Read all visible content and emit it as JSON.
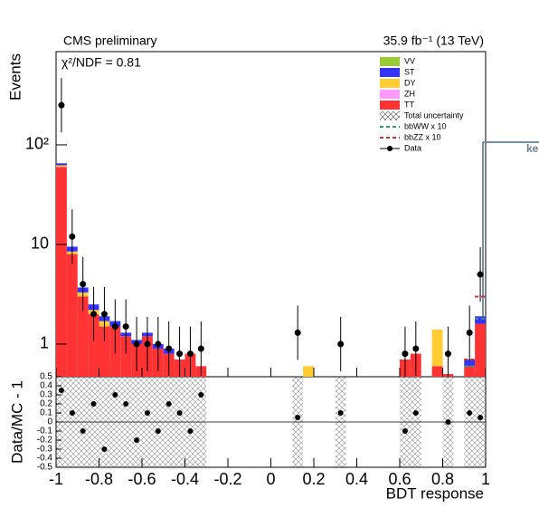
{
  "chart_data": {
    "type": "stacked_histogram",
    "title": "CMS preliminary",
    "subtitle": "35.9 fb⁻¹ (13 TeV)",
    "annotation": "χ²/NDF = 0.81",
    "side_note": "ke",
    "ylabel": "Events",
    "xlabel": "BDT response",
    "log_y": true,
    "xlim": [
      -1,
      1
    ],
    "xticks": [
      -1,
      -0.8,
      -0.6,
      -0.4,
      -0.2,
      0,
      0.2,
      0.4,
      0.6,
      0.8,
      1
    ],
    "ylim": [
      0.47,
      863
    ],
    "yticks": [
      1,
      10,
      {
        "value": 100,
        "label": "10²"
      }
    ],
    "bins": [
      -1,
      -0.95,
      -0.9,
      -0.85,
      -0.8,
      -0.75,
      -0.7,
      -0.65,
      -0.6,
      -0.55,
      -0.5,
      -0.45,
      -0.4,
      -0.35,
      -0.3,
      -0.25,
      -0.2,
      -0.15,
      -0.1,
      -0.05,
      0,
      0.05,
      0.1,
      0.15,
      0.2,
      0.25,
      0.3,
      0.35,
      0.4,
      0.45,
      0.5,
      0.55,
      0.6,
      0.65,
      0.7,
      0.75,
      0.8,
      0.85,
      0.9,
      0.95,
      1
    ],
    "series": [
      {
        "name": "VV",
        "color": "#99cc33",
        "values": [
          0.5,
          0,
          0,
          0,
          0,
          0,
          0,
          0,
          0,
          0,
          0,
          0,
          0,
          0,
          0,
          0,
          0,
          0,
          0,
          0,
          0,
          0,
          0,
          0,
          0,
          0,
          0,
          0,
          0,
          0,
          0,
          0,
          0,
          0,
          0,
          0,
          0,
          0,
          0,
          0
        ]
      },
      {
        "name": "ST",
        "color": "#3333ff",
        "values": [
          3,
          1,
          0.4,
          0.3,
          0.2,
          0.2,
          0.1,
          0.1,
          0.1,
          0.1,
          0.1,
          0,
          0,
          0,
          0,
          0,
          0,
          0,
          0,
          0,
          0,
          0,
          0,
          0,
          0,
          0,
          0,
          0,
          0,
          0,
          0,
          0,
          0,
          0,
          0,
          0,
          0,
          0,
          0.1,
          0.3
        ]
      },
      {
        "name": "DY",
        "color": "#ffcc33",
        "values": [
          2,
          0.5,
          0.3,
          0.2,
          0.2,
          0,
          0,
          0,
          0,
          0,
          0,
          0,
          0,
          0,
          0,
          0,
          0,
          0,
          0,
          0,
          0,
          0,
          0,
          0.6,
          0,
          0,
          0,
          0,
          0,
          0,
          0,
          0,
          0,
          0,
          0,
          0.8,
          0,
          0,
          0,
          0
        ]
      },
      {
        "name": "ZH",
        "color": "#ff99ff",
        "values": [
          0.3,
          0,
          0,
          0,
          0,
          0,
          0,
          0,
          0,
          0,
          0,
          0,
          0,
          0,
          0,
          0,
          0,
          0,
          0,
          0,
          0,
          0,
          0,
          0,
          0,
          0,
          0,
          0,
          0,
          0,
          0,
          0,
          0,
          0,
          0,
          0,
          0,
          0,
          0,
          0
        ]
      },
      {
        "name": "TT",
        "color": "#ff3333",
        "values": [
          60,
          8,
          3,
          2,
          1.5,
          1.5,
          1.2,
          1,
          1.2,
          0.9,
          0.8,
          0.7,
          0.8,
          0.6,
          0,
          0,
          0,
          0,
          0,
          0,
          0,
          0,
          0,
          0,
          0,
          0,
          0,
          0,
          0,
          0,
          0,
          0,
          0.7,
          0.8,
          0,
          0.6,
          0.5,
          0,
          0.6,
          1.6
        ]
      }
    ],
    "uncertainty_name": "Total uncertainty",
    "signals": [
      {
        "name": "bbWW x 10",
        "color": "#339966",
        "values": [
          null,
          null,
          null,
          null,
          null,
          null,
          null,
          null,
          null,
          null,
          null,
          null,
          null,
          null,
          null,
          null,
          null,
          null,
          null,
          null,
          null,
          null,
          null,
          null,
          null,
          null,
          null,
          null,
          null,
          null,
          null,
          null,
          null,
          null,
          null,
          null,
          null,
          null,
          0.6,
          1.8
        ]
      },
      {
        "name": "bbZZ x 10",
        "color": "#cc3333",
        "values": [
          null,
          null,
          null,
          null,
          null,
          null,
          null,
          null,
          null,
          null,
          null,
          null,
          null,
          null,
          null,
          null,
          null,
          null,
          null,
          null,
          null,
          null,
          null,
          null,
          null,
          null,
          null,
          null,
          null,
          null,
          null,
          null,
          null,
          null,
          null,
          null,
          null,
          null,
          0.7,
          3
        ]
      }
    ],
    "data": {
      "name": "Data",
      "values": [
        250,
        12,
        4,
        2,
        2,
        1.5,
        1.5,
        1,
        1,
        1,
        0.9,
        0.8,
        0.8,
        0.9,
        null,
        null,
        null,
        null,
        null,
        null,
        null,
        null,
        1.3,
        null,
        null,
        null,
        1,
        null,
        null,
        null,
        null,
        null,
        0.8,
        0.9,
        null,
        null,
        0.8,
        null,
        1.3,
        5
      ]
    },
    "ratio": {
      "ylabel": "Data/MC - 1",
      "ylim": [
        -0.5,
        0.5
      ],
      "yticks": [
        -0.5,
        -0.4,
        -0.3,
        -0.2,
        -0.1,
        0,
        0.1,
        0.2,
        0.3,
        0.4,
        0.5
      ],
      "values": [
        0.35,
        0.1,
        -0.1,
        0.2,
        -0.3,
        0.3,
        0.2,
        -0.2,
        0.1,
        -0.1,
        0.2,
        0.1,
        -0.1,
        0.3,
        null,
        null,
        null,
        null,
        null,
        null,
        null,
        null,
        0.05,
        null,
        null,
        null,
        0.1,
        null,
        null,
        null,
        null,
        null,
        -0.1,
        0.1,
        null,
        null,
        0.0,
        null,
        0.1,
        0.05
      ]
    }
  }
}
